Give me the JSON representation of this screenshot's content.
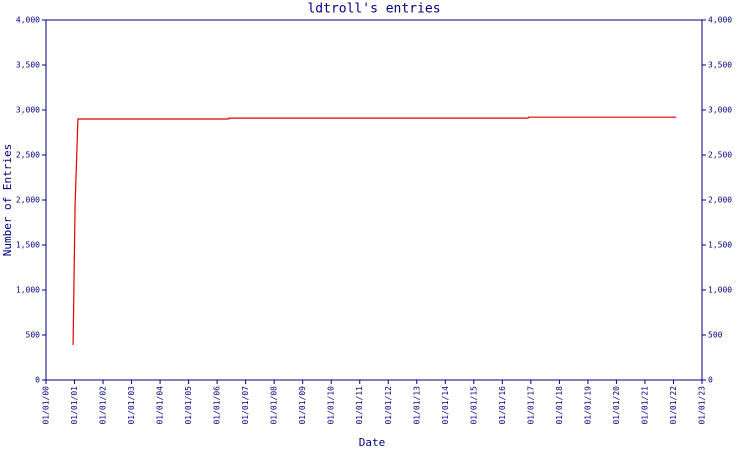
{
  "chart_data": {
    "type": "line",
    "title": "ldtroll's entries",
    "x_label": "Date",
    "y_label": "Number of Entries",
    "x": [
      2000.95,
      2001.02,
      2001.12,
      2006.4,
      2006.42,
      2016.9,
      2016.92,
      2022.1
    ],
    "values": [
      390,
      1950,
      2900,
      2900,
      2910,
      2910,
      2920,
      2920
    ],
    "color": "#e00000",
    "xlim": [
      2000,
      2023
    ],
    "xticks": [
      {
        "value": 2000,
        "label": "01/01/00"
      },
      {
        "value": 2001,
        "label": "01/01/01"
      },
      {
        "value": 2002,
        "label": "01/01/02"
      },
      {
        "value": 2003,
        "label": "01/01/03"
      },
      {
        "value": 2004,
        "label": "01/01/04"
      },
      {
        "value": 2005,
        "label": "01/01/05"
      },
      {
        "value": 2006,
        "label": "01/01/06"
      },
      {
        "value": 2007,
        "label": "01/01/07"
      },
      {
        "value": 2008,
        "label": "01/01/08"
      },
      {
        "value": 2009,
        "label": "01/01/09"
      },
      {
        "value": 2010,
        "label": "01/01/10"
      },
      {
        "value": 2011,
        "label": "01/01/11"
      },
      {
        "value": 2012,
        "label": "01/01/12"
      },
      {
        "value": 2013,
        "label": "01/01/13"
      },
      {
        "value": 2014,
        "label": "01/01/14"
      },
      {
        "value": 2015,
        "label": "01/01/15"
      },
      {
        "value": 2016,
        "label": "01/01/16"
      },
      {
        "value": 2017,
        "label": "01/01/17"
      },
      {
        "value": 2018,
        "label": "01/01/18"
      },
      {
        "value": 2019,
        "label": "01/01/19"
      },
      {
        "value": 2020,
        "label": "01/01/20"
      },
      {
        "value": 2021,
        "label": "01/01/21"
      },
      {
        "value": 2022,
        "label": "01/01/22"
      },
      {
        "value": 2023,
        "label": "01/01/23"
      }
    ],
    "ylim": [
      0,
      4000
    ],
    "yticks": [
      0,
      500,
      {
        "value": 1000,
        "label": "1,000"
      },
      {
        "value": 1500,
        "label": "1,500"
      },
      {
        "value": 2000,
        "label": "2,000"
      },
      {
        "value": 2500,
        "label": "2,500"
      },
      {
        "value": 3000,
        "label": "3,000"
      },
      {
        "value": 3500,
        "label": "3,500"
      },
      {
        "value": 4000,
        "label": "4,000"
      }
    ],
    "grid": false
  }
}
